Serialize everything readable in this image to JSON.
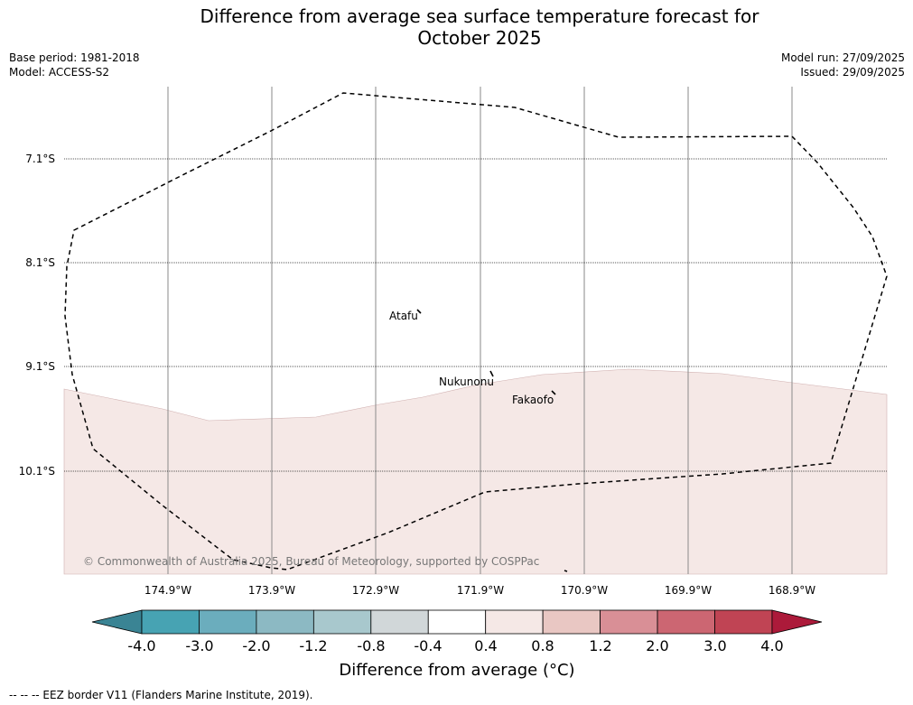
{
  "title_line1": "Difference from average sea surface temperature forecast for",
  "title_line2": "October 2025",
  "base_period": "Base period: 1981-2018",
  "model": "Model: ACCESS-S2",
  "model_run": "Model run: 27/09/2025",
  "issued": "Issued: 29/09/2025",
  "latitudes": [
    "7.1°S",
    "8.1°S",
    "9.1°S",
    "10.1°S"
  ],
  "longitudes": [
    "174.9°W",
    "173.9°W",
    "172.9°W",
    "171.9°W",
    "170.9°W",
    "169.9°W",
    "168.9°W"
  ],
  "places": {
    "atafu": "Atafu",
    "nukunonu": "Nukunonu",
    "fakaofo": "Fakaofo"
  },
  "copyright": "© Commonwealth of Australia 2025, Bureau of Meteorology, supported by COSPPac",
  "colorbar": {
    "label": "Difference from average (°C)",
    "ticks": [
      "-4.0",
      "-3.0",
      "-2.0",
      "-1.2",
      "-0.8",
      "-0.4",
      "0.4",
      "0.8",
      "1.2",
      "2.0",
      "3.0",
      "4.0"
    ],
    "colors": [
      "#47a3b3",
      "#6badbd",
      "#8cb9c3",
      "#a8c8cd",
      "#d1d7d9",
      "#ffffff",
      "#f5e8e6",
      "#e9c7c3",
      "#d98f96",
      "#cc6672",
      "#c04454"
    ],
    "under_color": "#3a8494",
    "over_color": "#ac1a3a"
  },
  "anomaly_fill_color": "#f5e8e6",
  "footnote": "--  --  -- EEZ border V11 (Flanders Marine Institute, 2019)."
}
